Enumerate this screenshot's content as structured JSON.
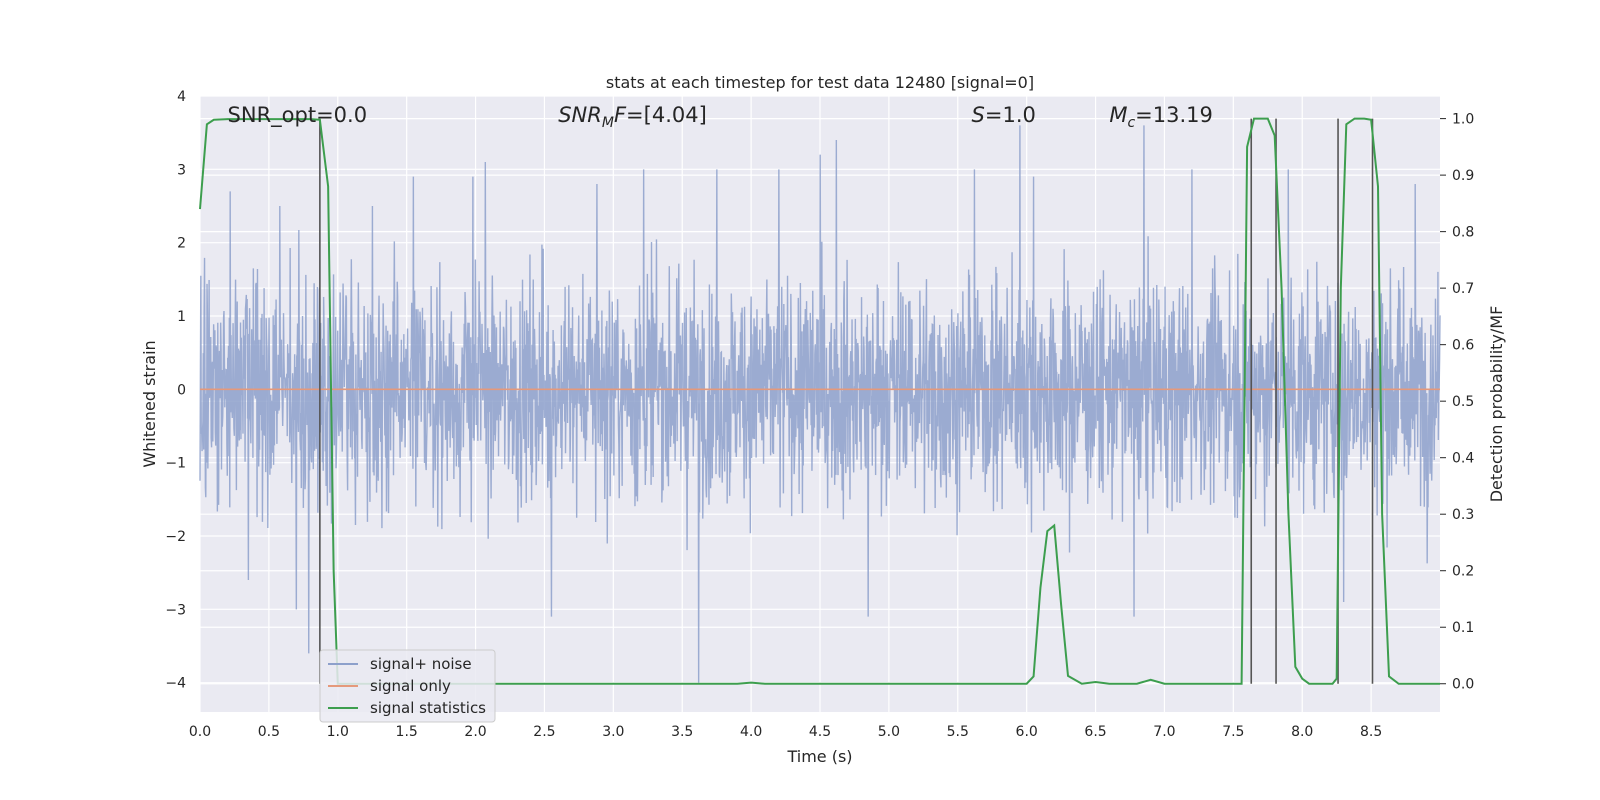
{
  "chart_data": {
    "type": "line",
    "title": "stats at each timestep for test data 12480 [signal=0]",
    "xlabel": "Time (s)",
    "ylabel": "Whitened strain",
    "ylabel_right": "Detection probability/MF",
    "xlim": [
      0.0,
      9.0
    ],
    "ylim": [
      -4.4,
      4.0
    ],
    "ylim_right": [
      -0.05,
      1.04
    ],
    "x_ticks": [
      "0.0",
      "0.5",
      "1.0",
      "1.5",
      "2.0",
      "2.5",
      "3.0",
      "3.5",
      "4.0",
      "4.5",
      "5.0",
      "5.5",
      "6.0",
      "6.5",
      "7.0",
      "7.5",
      "8.0",
      "8.5"
    ],
    "y_ticks": [
      "4",
      "3",
      "2",
      "1",
      "0",
      "−1",
      "−2",
      "−3",
      "−4"
    ],
    "y_ticks_right": [
      "1.0",
      "0.9",
      "0.8",
      "0.7",
      "0.6",
      "0.5",
      "0.4",
      "0.3",
      "0.2",
      "0.1",
      "0.0"
    ],
    "grid": true,
    "legend_position": "lower-left",
    "annotations": [
      {
        "text": "SNR_opt=0.0",
        "x": 0.2
      },
      {
        "text": "SNR",
        "sub": "M",
        "rest": "F=[4.04]",
        "x": 2.6,
        "italic": true
      },
      {
        "text": "S",
        "rest": "=1.0",
        "x": 5.6,
        "italic": true
      },
      {
        "text": "M",
        "sub": "c",
        "rest": "=13.19",
        "x": 6.6,
        "italic": true
      }
    ],
    "series": [
      {
        "name": "signal+ noise",
        "color": "#8da0cb",
        "axis": "left",
        "kind": "noise",
        "peaks": [
          {
            "x": 0.22,
            "y": 2.7
          },
          {
            "x": 0.35,
            "y": -2.6
          },
          {
            "x": 0.58,
            "y": 2.5
          },
          {
            "x": 0.7,
            "y": -3.0
          },
          {
            "x": 0.79,
            "y": -3.6
          },
          {
            "x": 1.25,
            "y": 2.5
          },
          {
            "x": 1.55,
            "y": 2.9
          },
          {
            "x": 1.98,
            "y": 2.9
          },
          {
            "x": 2.07,
            "y": 3.1
          },
          {
            "x": 2.55,
            "y": -3.1
          },
          {
            "x": 2.88,
            "y": 2.8
          },
          {
            "x": 3.22,
            "y": 3.0
          },
          {
            "x": 3.62,
            "y": -4.0
          },
          {
            "x": 3.75,
            "y": 3.0
          },
          {
            "x": 4.2,
            "y": 3.0
          },
          {
            "x": 4.5,
            "y": 3.2
          },
          {
            "x": 4.62,
            "y": 3.4
          },
          {
            "x": 4.85,
            "y": -3.1
          },
          {
            "x": 5.62,
            "y": 3.0
          },
          {
            "x": 5.95,
            "y": 3.6
          },
          {
            "x": 6.05,
            "y": 2.9
          },
          {
            "x": 6.78,
            "y": -3.1
          },
          {
            "x": 6.85,
            "y": 3.6
          },
          {
            "x": 7.2,
            "y": 3.0
          },
          {
            "x": 7.9,
            "y": 3.0
          },
          {
            "x": 8.3,
            "y": -2.9
          },
          {
            "x": 8.82,
            "y": 2.8
          }
        ]
      },
      {
        "name": "signal only",
        "color": "#e5997b",
        "axis": "left",
        "kind": "flat",
        "y": 0.0
      },
      {
        "name": "signal statistics",
        "color": "#3d9e4e",
        "axis": "right",
        "kind": "line",
        "x": [
          0.0,
          0.05,
          0.1,
          0.2,
          0.4,
          0.6,
          0.8,
          0.87,
          0.93,
          0.97,
          1.0,
          1.5,
          2.0,
          3.0,
          3.9,
          4.0,
          4.1,
          5.0,
          6.0,
          6.05,
          6.1,
          6.15,
          6.2,
          6.25,
          6.3,
          6.4,
          6.5,
          6.6,
          6.8,
          6.9,
          7.0,
          7.5,
          7.56,
          7.6,
          7.65,
          7.7,
          7.75,
          7.8,
          7.85,
          7.9,
          7.95,
          8.0,
          8.05,
          8.15,
          8.22,
          8.25,
          8.28,
          8.32,
          8.38,
          8.45,
          8.5,
          8.55,
          8.58,
          8.63,
          8.7,
          9.0
        ],
        "y": [
          0.84,
          0.99,
          0.998,
          0.999,
          0.999,
          0.999,
          0.999,
          0.998,
          0.88,
          0.2,
          0.0,
          0.0,
          0.0,
          0.0,
          0.0,
          0.002,
          0.0,
          0.0,
          0.0,
          0.013,
          0.17,
          0.27,
          0.28,
          0.14,
          0.014,
          0.0,
          0.003,
          0.0,
          0.0,
          0.007,
          0.0,
          0.0,
          0.0,
          0.95,
          1.0,
          1.0,
          1.0,
          0.97,
          0.7,
          0.3,
          0.03,
          0.009,
          0.0,
          0.0,
          0.0,
          0.009,
          0.7,
          0.99,
          1.0,
          1.0,
          0.998,
          0.88,
          0.3,
          0.013,
          0.0,
          0.0
        ]
      }
    ],
    "vertical_markers": {
      "color": "#555555",
      "lines": [
        {
          "x": 0.87,
          "y_top": 0.998,
          "y_bottom": 0.0
        },
        {
          "x": 7.63,
          "y_top": 1.0,
          "y_bottom": 0.0
        },
        {
          "x": 7.81,
          "y_top": 1.0,
          "y_bottom": 0.0
        },
        {
          "x": 8.26,
          "y_top": 1.0,
          "y_bottom": 0.0
        },
        {
          "x": 8.51,
          "y_top": 1.0,
          "y_bottom": 0.0
        }
      ]
    }
  }
}
